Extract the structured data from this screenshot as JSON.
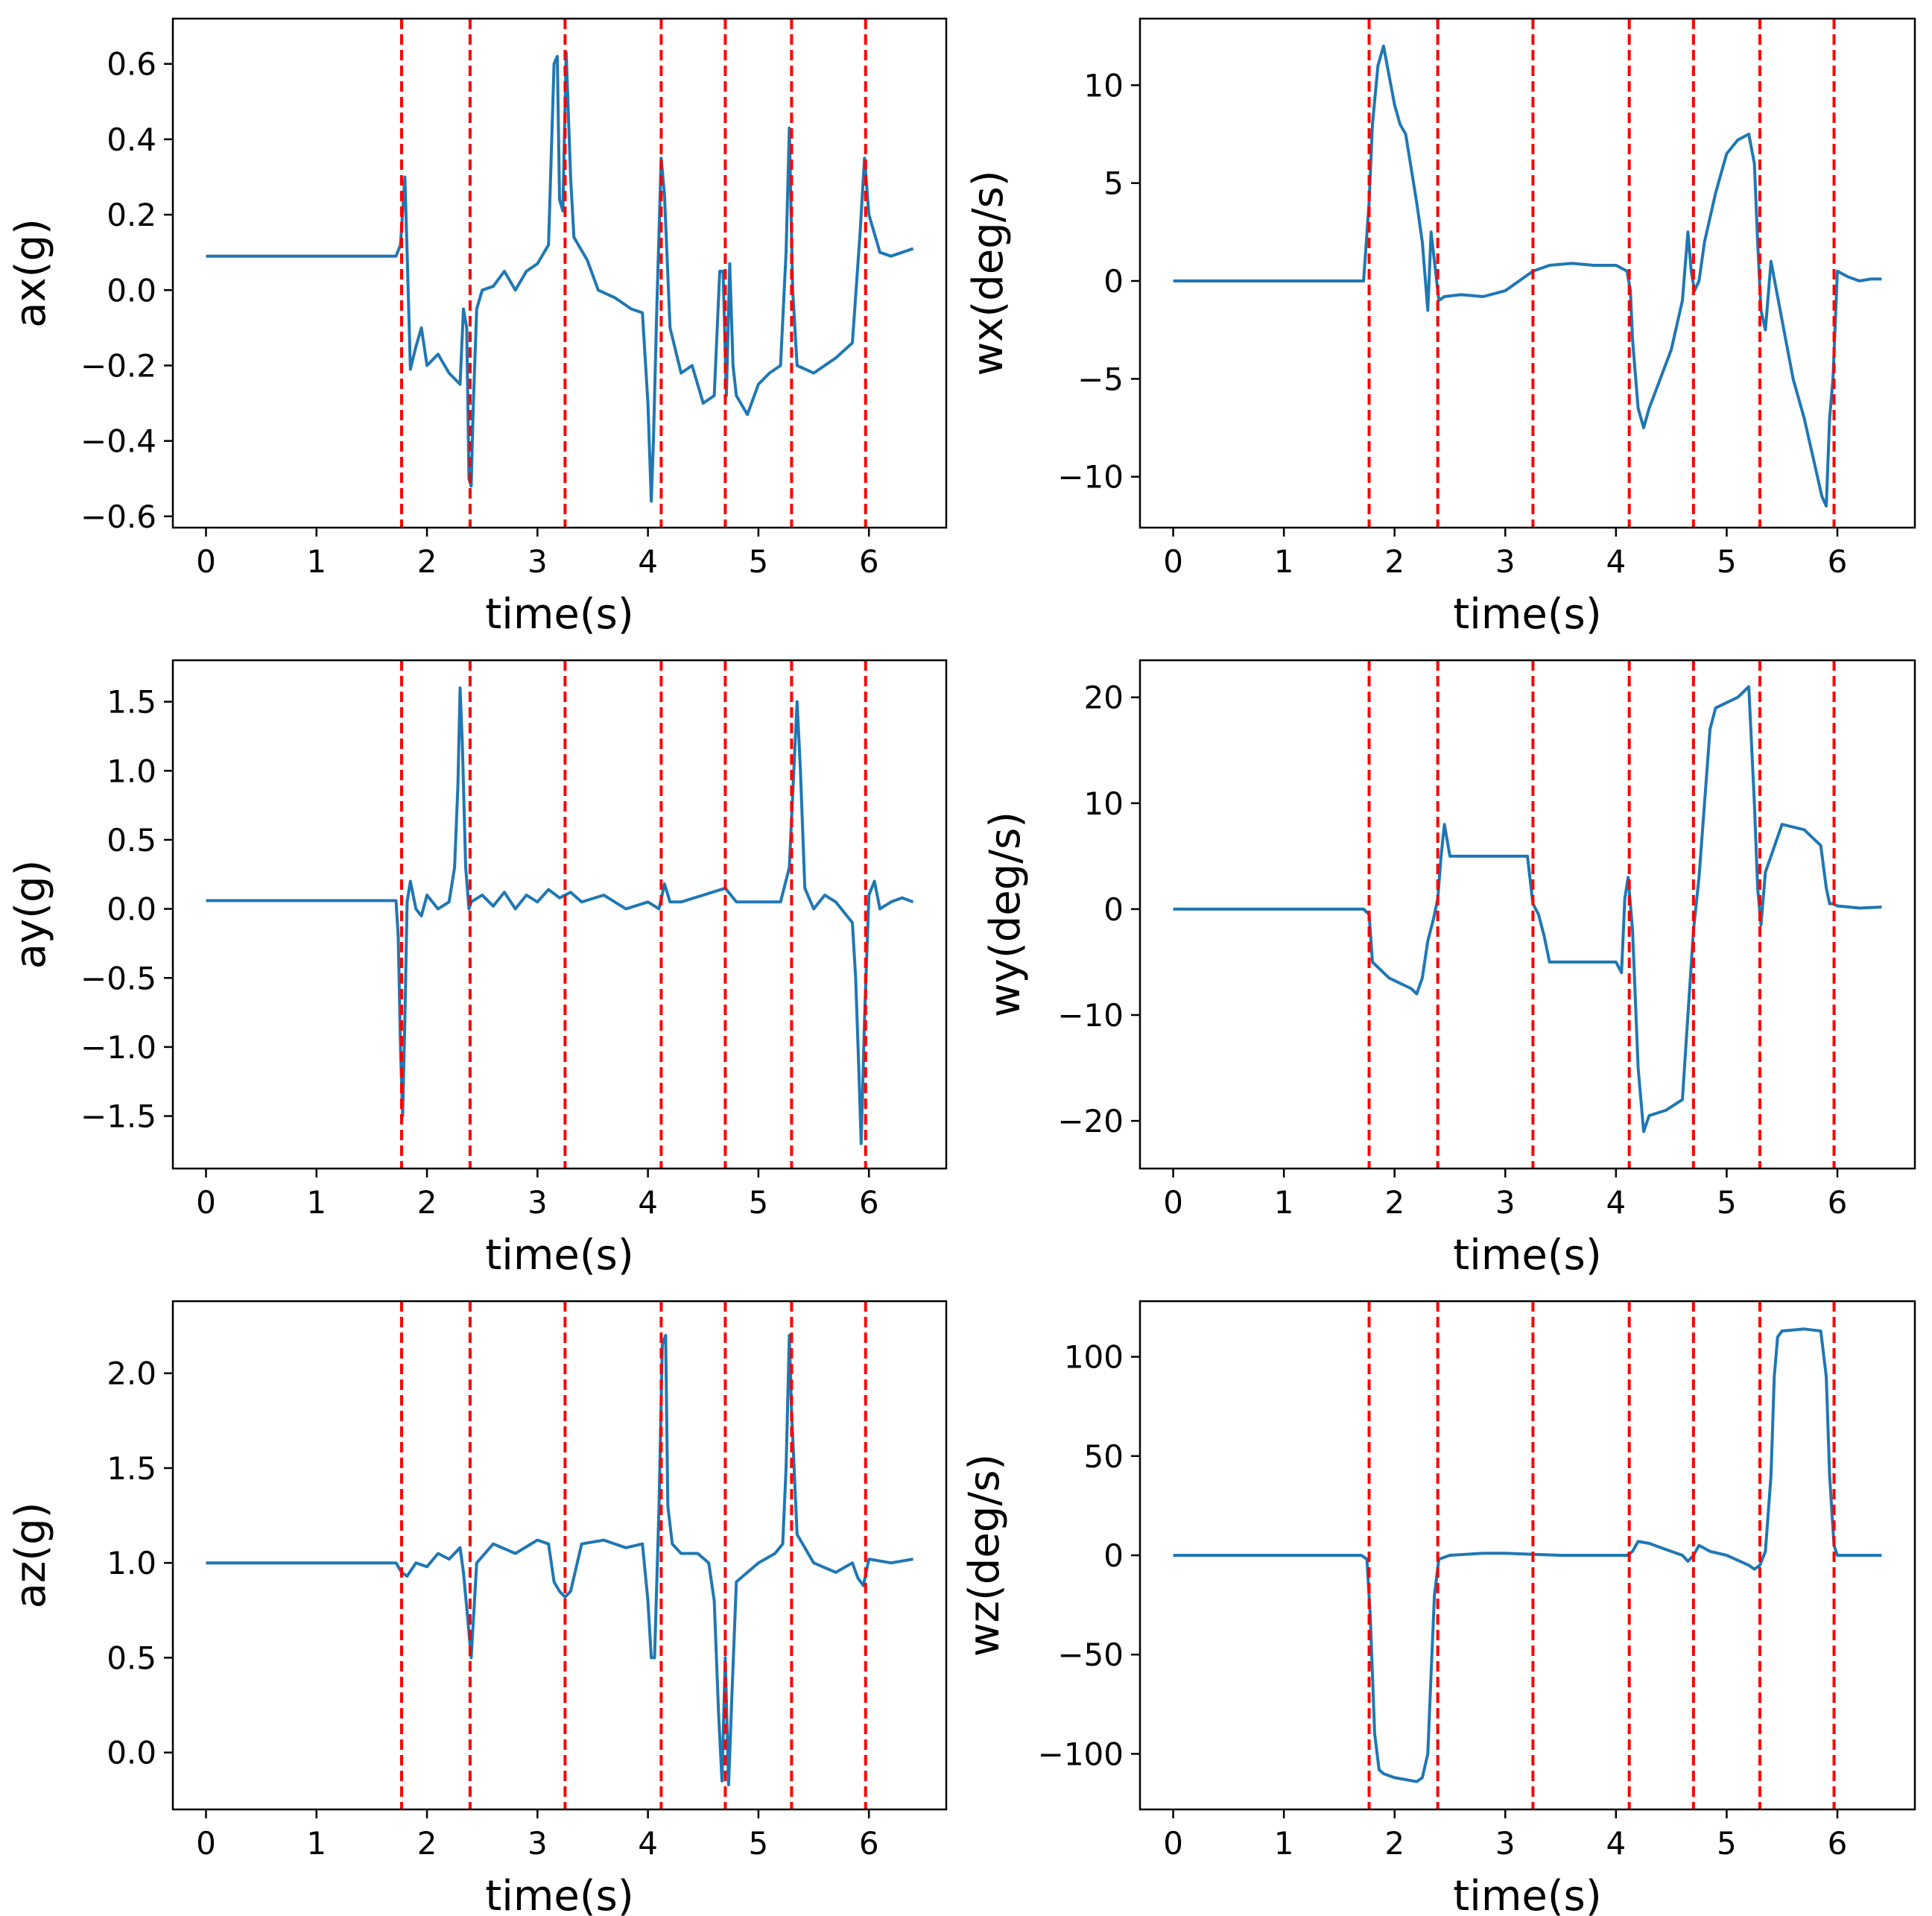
{
  "chart_data": [
    {
      "type": "line",
      "ylabel": "ax(g)",
      "xlabel": "time(s)",
      "xlim": [
        -0.3,
        6.7
      ],
      "ylim": [
        -0.63,
        0.72
      ],
      "xticks": [
        0,
        1,
        2,
        3,
        4,
        5,
        6
      ],
      "yticks": [
        -0.6,
        -0.4,
        -0.2,
        0.0,
        0.2,
        0.4,
        0.6
      ],
      "ytick_labels": [
        "−0.6",
        "−0.4",
        "−0.2",
        "0.0",
        "0.2",
        "0.4",
        "0.6"
      ],
      "vlines": [
        1.77,
        2.39,
        3.25,
        4.12,
        4.7,
        5.3,
        5.97
      ],
      "series": [
        {
          "name": "ax",
          "color": "#1f77b4",
          "x": [
            0,
            0.5,
            1.0,
            1.5,
            1.72,
            1.76,
            1.8,
            1.82,
            1.85,
            1.9,
            1.95,
            2.0,
            2.1,
            2.2,
            2.3,
            2.33,
            2.36,
            2.38,
            2.4,
            2.42,
            2.45,
            2.5,
            2.6,
            2.7,
            2.8,
            2.9,
            3.0,
            3.1,
            3.15,
            3.18,
            3.2,
            3.23,
            3.26,
            3.3,
            3.33,
            3.37,
            3.45,
            3.55,
            3.7,
            3.85,
            3.95,
            4.0,
            4.03,
            4.05,
            4.08,
            4.12,
            4.15,
            4.2,
            4.3,
            4.4,
            4.5,
            4.6,
            4.65,
            4.68,
            4.71,
            4.74,
            4.77,
            4.8,
            4.9,
            5.0,
            5.1,
            5.2,
            5.25,
            5.28,
            5.31,
            5.35,
            5.5,
            5.7,
            5.85,
            5.92,
            5.96,
            6.0,
            6.1,
            6.2,
            6.3,
            6.4
          ],
          "values": [
            0.09,
            0.09,
            0.09,
            0.09,
            0.09,
            0.12,
            0.3,
            0.1,
            -0.21,
            -0.15,
            -0.1,
            -0.2,
            -0.17,
            -0.22,
            -0.25,
            -0.05,
            -0.1,
            -0.5,
            -0.52,
            -0.3,
            -0.05,
            0.0,
            0.01,
            0.05,
            0.0,
            0.05,
            0.07,
            0.12,
            0.6,
            0.62,
            0.24,
            0.21,
            0.63,
            0.3,
            0.14,
            0.12,
            0.08,
            0.0,
            -0.02,
            -0.05,
            -0.06,
            -0.3,
            -0.56,
            -0.4,
            -0.05,
            0.35,
            0.25,
            -0.1,
            -0.22,
            -0.2,
            -0.3,
            -0.28,
            0.05,
            0.05,
            -0.28,
            0.07,
            -0.2,
            -0.28,
            -0.33,
            -0.25,
            -0.22,
            -0.2,
            0.1,
            0.43,
            0.0,
            -0.2,
            -0.22,
            -0.18,
            -0.14,
            0.15,
            0.35,
            0.2,
            0.1,
            0.09,
            0.1,
            0.11
          ]
        }
      ]
    },
    {
      "type": "line",
      "ylabel": "wx(deg/s)",
      "xlabel": "time(s)",
      "xlim": [
        -0.3,
        6.7
      ],
      "ylim": [
        -12.6,
        13.4
      ],
      "xticks": [
        0,
        1,
        2,
        3,
        4,
        5,
        6
      ],
      "yticks": [
        -10,
        -5,
        0,
        5,
        10
      ],
      "ytick_labels": [
        "−10",
        "−5",
        "0",
        "5",
        "10"
      ],
      "vlines": [
        1.77,
        2.39,
        3.25,
        4.12,
        4.7,
        5.3,
        5.97
      ],
      "series": [
        {
          "name": "wx",
          "color": "#1f77b4",
          "x": [
            0,
            0.5,
            1.0,
            1.5,
            1.72,
            1.77,
            1.8,
            1.85,
            1.9,
            2.0,
            2.05,
            2.1,
            2.2,
            2.25,
            2.3,
            2.33,
            2.36,
            2.38,
            2.4,
            2.45,
            2.6,
            2.8,
            3.0,
            3.25,
            3.4,
            3.6,
            3.8,
            4.0,
            4.1,
            4.13,
            4.15,
            4.2,
            4.25,
            4.3,
            4.4,
            4.5,
            4.6,
            4.65,
            4.68,
            4.71,
            4.75,
            4.8,
            4.9,
            5.0,
            5.1,
            5.2,
            5.25,
            5.28,
            5.31,
            5.35,
            5.4,
            5.5,
            5.6,
            5.7,
            5.8,
            5.86,
            5.9,
            5.93,
            5.96,
            6.0,
            6.1,
            6.2,
            6.3,
            6.4
          ],
          "values": [
            0,
            0,
            0,
            0,
            0,
            4.0,
            8.0,
            11.0,
            12.0,
            9.0,
            8.0,
            7.5,
            4.0,
            2.0,
            -1.5,
            2.5,
            1.0,
            0.0,
            -1.0,
            -0.8,
            -0.7,
            -0.8,
            -0.5,
            0.5,
            0.8,
            0.9,
            0.8,
            0.8,
            0.5,
            -0.5,
            -3.0,
            -6.5,
            -7.5,
            -6.5,
            -5.0,
            -3.5,
            -1.0,
            2.5,
            0.5,
            -0.5,
            0.0,
            2.0,
            4.5,
            6.5,
            7.2,
            7.5,
            6.0,
            2.0,
            -1.5,
            -2.5,
            1.0,
            -2.0,
            -5.0,
            -7.0,
            -9.5,
            -11.0,
            -11.5,
            -7.0,
            -5.0,
            0.5,
            0.2,
            0.0,
            0.1,
            0.1
          ]
        }
      ]
    },
    {
      "type": "line",
      "ylabel": "ay(g)",
      "xlabel": "time(s)",
      "xlim": [
        -0.3,
        6.7
      ],
      "ylim": [
        -1.88,
        1.8
      ],
      "xticks": [
        0,
        1,
        2,
        3,
        4,
        5,
        6
      ],
      "yticks": [
        -1.5,
        -1.0,
        -0.5,
        0.0,
        0.5,
        1.0,
        1.5
      ],
      "ytick_labels": [
        "−1.5",
        "−1.0",
        "−0.5",
        "0.0",
        "0.5",
        "1.0",
        "1.5"
      ],
      "vlines": [
        1.77,
        2.39,
        3.25,
        4.12,
        4.7,
        5.3,
        5.97
      ],
      "series": [
        {
          "name": "ay",
          "color": "#1f77b4",
          "x": [
            0,
            0.5,
            1.0,
            1.5,
            1.72,
            1.74,
            1.76,
            1.78,
            1.8,
            1.82,
            1.85,
            1.9,
            1.95,
            2.0,
            2.1,
            2.2,
            2.25,
            2.28,
            2.3,
            2.32,
            2.35,
            2.38,
            2.4,
            2.5,
            2.6,
            2.7,
            2.8,
            2.9,
            3.0,
            3.1,
            3.2,
            3.3,
            3.4,
            3.6,
            3.8,
            4.0,
            4.1,
            4.15,
            4.2,
            4.3,
            4.5,
            4.7,
            4.8,
            5.0,
            5.2,
            5.28,
            5.32,
            5.35,
            5.38,
            5.42,
            5.5,
            5.6,
            5.7,
            5.85,
            5.88,
            5.91,
            5.93,
            5.96,
            6.0,
            6.05,
            6.1,
            6.2,
            6.3,
            6.4
          ],
          "values": [
            0.06,
            0.06,
            0.06,
            0.06,
            0.06,
            -0.2,
            -1.0,
            -1.5,
            -0.8,
            0.05,
            0.2,
            0.0,
            -0.05,
            0.1,
            0.0,
            0.05,
            0.3,
            0.9,
            1.6,
            1.2,
            0.3,
            0.0,
            0.05,
            0.1,
            0.02,
            0.12,
            0.0,
            0.1,
            0.05,
            0.14,
            0.08,
            0.12,
            0.05,
            0.1,
            0.0,
            0.05,
            0.0,
            0.18,
            0.05,
            0.05,
            0.1,
            0.15,
            0.05,
            0.05,
            0.05,
            0.3,
            1.0,
            1.5,
            1.0,
            0.15,
            0.0,
            0.1,
            0.05,
            -0.1,
            -0.5,
            -1.2,
            -1.7,
            -0.8,
            0.1,
            0.2,
            0.0,
            0.05,
            0.08,
            0.05
          ]
        }
      ]
    },
    {
      "type": "line",
      "ylabel": "wy(deg/s)",
      "xlabel": "time(s)",
      "xlim": [
        -0.3,
        6.7
      ],
      "ylim": [
        -24.5,
        23.5
      ],
      "xticks": [
        0,
        1,
        2,
        3,
        4,
        5,
        6
      ],
      "yticks": [
        -20,
        -10,
        0,
        10,
        20
      ],
      "ytick_labels": [
        "−20",
        "−10",
        "0",
        "10",
        "20"
      ],
      "vlines": [
        1.77,
        2.39,
        3.25,
        4.12,
        4.7,
        5.3,
        5.97
      ],
      "series": [
        {
          "name": "wy",
          "color": "#1f77b4",
          "x": [
            0,
            0.5,
            1.0,
            1.5,
            1.72,
            1.77,
            1.8,
            1.85,
            1.95,
            2.05,
            2.15,
            2.2,
            2.25,
            2.3,
            2.35,
            2.39,
            2.42,
            2.45,
            2.5,
            2.6,
            2.8,
            3.0,
            3.2,
            3.25,
            3.3,
            3.35,
            3.4,
            3.6,
            3.8,
            4.0,
            4.05,
            4.08,
            4.11,
            4.15,
            4.2,
            4.25,
            4.3,
            4.45,
            4.6,
            4.65,
            4.7,
            4.75,
            4.8,
            4.85,
            4.9,
            5.1,
            5.2,
            5.25,
            5.28,
            5.31,
            5.35,
            5.4,
            5.5,
            5.7,
            5.85,
            5.9,
            5.93,
            5.96,
            6.0,
            6.2,
            6.4
          ],
          "values": [
            0,
            0,
            0,
            0,
            0,
            -0.5,
            -5.0,
            -5.5,
            -6.5,
            -7.0,
            -7.5,
            -8.0,
            -6.5,
            -3.0,
            -1.0,
            1.0,
            5.0,
            8.0,
            5.0,
            5.0,
            5.0,
            5.0,
            5.0,
            0.5,
            -0.5,
            -2.5,
            -5.0,
            -5.0,
            -5.0,
            -5.0,
            -6.0,
            1.0,
            3.0,
            -2.0,
            -15.0,
            -21.0,
            -19.5,
            -19.0,
            -18.0,
            -10.0,
            -2.0,
            3.0,
            10.0,
            17.0,
            19.0,
            20.0,
            21.0,
            10.0,
            2.0,
            -1.5,
            3.5,
            5.0,
            8.0,
            7.5,
            6.0,
            2.0,
            0.5,
            0.5,
            0.3,
            0.1,
            0.2
          ]
        }
      ]
    },
    {
      "type": "line",
      "ylabel": "az(g)",
      "xlabel": "time(s)",
      "xlim": [
        -0.3,
        6.7
      ],
      "ylim": [
        -0.3,
        2.38
      ],
      "xticks": [
        0,
        1,
        2,
        3,
        4,
        5,
        6
      ],
      "yticks": [
        0.0,
        0.5,
        1.0,
        1.5,
        2.0
      ],
      "ytick_labels": [
        "0.0",
        "0.5",
        "1.0",
        "1.5",
        "2.0"
      ],
      "vlines": [
        1.77,
        2.39,
        3.25,
        4.12,
        4.7,
        5.3,
        5.97
      ],
      "series": [
        {
          "name": "az",
          "color": "#1f77b4",
          "x": [
            0,
            0.5,
            1.0,
            1.5,
            1.72,
            1.77,
            1.82,
            1.9,
            2.0,
            2.1,
            2.2,
            2.3,
            2.33,
            2.37,
            2.4,
            2.45,
            2.6,
            2.8,
            3.0,
            3.1,
            3.15,
            3.2,
            3.25,
            3.3,
            3.4,
            3.6,
            3.8,
            3.95,
            4.0,
            4.03,
            4.06,
            4.1,
            4.13,
            4.16,
            4.18,
            4.22,
            4.3,
            4.45,
            4.55,
            4.6,
            4.64,
            4.67,
            4.7,
            4.73,
            4.76,
            4.8,
            4.9,
            5.0,
            5.15,
            5.22,
            5.25,
            5.28,
            5.3,
            5.35,
            5.5,
            5.7,
            5.85,
            5.9,
            5.95,
            6.0,
            6.2,
            6.4
          ],
          "values": [
            1.0,
            1.0,
            1.0,
            1.0,
            1.0,
            0.95,
            0.93,
            1.0,
            0.98,
            1.05,
            1.02,
            1.08,
            0.95,
            0.7,
            0.5,
            1.0,
            1.1,
            1.05,
            1.12,
            1.1,
            0.9,
            0.85,
            0.82,
            0.85,
            1.1,
            1.12,
            1.08,
            1.1,
            0.8,
            0.5,
            0.5,
            1.3,
            2.15,
            2.2,
            1.3,
            1.1,
            1.05,
            1.05,
            1.0,
            0.8,
            0.2,
            -0.15,
            0.5,
            -0.17,
            0.3,
            0.9,
            0.95,
            1.0,
            1.05,
            1.1,
            1.5,
            2.2,
            1.8,
            1.15,
            1.0,
            0.95,
            1.0,
            0.92,
            0.88,
            1.02,
            1.0,
            1.02
          ]
        }
      ]
    },
    {
      "type": "line",
      "ylabel": "wz(deg/s)",
      "xlabel": "time(s)",
      "xlim": [
        -0.3,
        6.7
      ],
      "ylim": [
        -128,
        128
      ],
      "xticks": [
        0,
        1,
        2,
        3,
        4,
        5,
        6
      ],
      "yticks": [
        -100,
        -50,
        0,
        50,
        100
      ],
      "ytick_labels": [
        "−100",
        "−50",
        "0",
        "50",
        "100"
      ],
      "vlines": [
        1.77,
        2.39,
        3.25,
        4.12,
        4.7,
        5.3,
        5.97
      ],
      "series": [
        {
          "name": "wz",
          "color": "#1f77b4",
          "x": [
            0,
            0.5,
            1.0,
            1.5,
            1.7,
            1.75,
            1.78,
            1.82,
            1.86,
            1.9,
            2.0,
            2.1,
            2.2,
            2.25,
            2.3,
            2.33,
            2.36,
            2.4,
            2.5,
            2.8,
            3.0,
            3.5,
            4.0,
            4.1,
            4.15,
            4.2,
            4.3,
            4.5,
            4.6,
            4.65,
            4.7,
            4.75,
            4.85,
            5.0,
            5.2,
            5.25,
            5.3,
            5.35,
            5.4,
            5.43,
            5.46,
            5.5,
            5.7,
            5.85,
            5.9,
            5.93,
            5.97,
            6.0,
            6.2,
            6.4
          ],
          "values": [
            0,
            0,
            0,
            0,
            0,
            -2,
            -30,
            -90,
            -108,
            -110,
            -112,
            -113,
            -114,
            -112,
            -100,
            -60,
            -20,
            -2,
            0,
            1,
            1,
            0,
            0,
            0,
            2,
            7,
            6,
            2,
            0,
            -3,
            0,
            5,
            2,
            0,
            -5,
            -7,
            -5,
            2,
            40,
            90,
            110,
            113,
            114,
            113,
            90,
            40,
            5,
            0,
            0,
            0
          ]
        }
      ]
    }
  ]
}
